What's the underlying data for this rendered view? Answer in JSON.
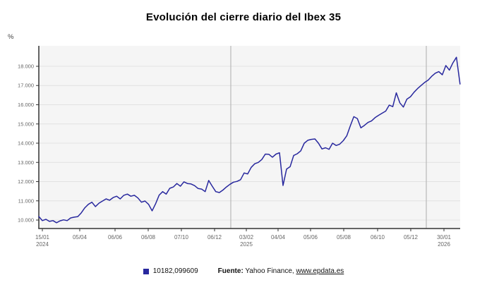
{
  "page": {
    "title": "Evolución del cierre diario del Ibex 35",
    "unit_label": "%"
  },
  "legend": {
    "series_label": "10182,099609"
  },
  "source": {
    "prefix": "Fuente:",
    "text": " Yahoo Finance, ",
    "link": "www.epdata.es"
  },
  "colors": {
    "line": "#28289E",
    "plot_bg": "#F5F5F5",
    "grid": "#E2E2E2",
    "year_line": "#ADADAD",
    "axis": "#333333",
    "tick_text": "#666666"
  },
  "chart_data": {
    "type": "line",
    "title": "Evolución del cierre diario del Ibex 35",
    "ylabel": "%",
    "ylim": [
      9560,
      19064
    ],
    "grid": true,
    "legend_position": "bottom",
    "y_ticks": [
      {
        "value": 10000,
        "label": "10.000"
      },
      {
        "value": 11000,
        "label": "11.000"
      },
      {
        "value": 12000,
        "label": "12.000"
      },
      {
        "value": 13000,
        "label": "13.000"
      },
      {
        "value": 14000,
        "label": "14.000"
      },
      {
        "value": 15000,
        "label": "15.000"
      },
      {
        "value": 16000,
        "label": "16.000"
      },
      {
        "value": 17000,
        "label": "17.000"
      },
      {
        "value": 18000,
        "label": "18.000"
      }
    ],
    "x_ticks": [
      {
        "label": "15/01",
        "year": "2024",
        "pos": 0.0084
      },
      {
        "label": "05/04",
        "year": "",
        "pos": 0.0971
      },
      {
        "label": "06/06",
        "year": "",
        "pos": 0.1809
      },
      {
        "label": "06/08",
        "year": "",
        "pos": 0.2596
      },
      {
        "label": "07/10",
        "year": "",
        "pos": 0.3383
      },
      {
        "label": "06/12",
        "year": "",
        "pos": 0.4171
      },
      {
        "label": "03/02",
        "year": "2025",
        "pos": 0.4925
      },
      {
        "label": "04/04",
        "year": "",
        "pos": 0.5678
      },
      {
        "label": "05/06",
        "year": "",
        "pos": 0.6449
      },
      {
        "label": "05/08",
        "year": "",
        "pos": 0.7236
      },
      {
        "label": "06/10",
        "year": "",
        "pos": 0.804
      },
      {
        "label": "05/12",
        "year": "",
        "pos": 0.8827
      },
      {
        "label": "30/01",
        "year": "2026",
        "pos": 0.9615
      }
    ],
    "year_boundaries_pos": [
      0.4556,
      0.9196
    ],
    "series": [
      {
        "name": "10182,099609",
        "color": "#28289E",
        "x_start": 0.0,
        "x_step": 0.0084,
        "values": [
          10182,
          9970,
          10040,
          9930,
          9970,
          9860,
          9960,
          10010,
          9970,
          10110,
          10150,
          10180,
          10380,
          10640,
          10820,
          10930,
          10700,
          10880,
          10990,
          11100,
          11030,
          11170,
          11240,
          11100,
          11290,
          11350,
          11240,
          11290,
          11150,
          10930,
          10990,
          10820,
          10480,
          10850,
          11300,
          11480,
          11350,
          11650,
          11720,
          11900,
          11760,
          11990,
          11900,
          11880,
          11790,
          11640,
          11610,
          11480,
          12060,
          11760,
          11480,
          11430,
          11560,
          11720,
          11860,
          11970,
          12010,
          12100,
          12450,
          12400,
          12740,
          12930,
          13000,
          13150,
          13430,
          13420,
          13270,
          13430,
          13500,
          11800,
          12650,
          12780,
          13360,
          13450,
          13600,
          14000,
          14150,
          14200,
          14220,
          14000,
          13700,
          13760,
          13680,
          14000,
          13880,
          13950,
          14130,
          14380,
          14900,
          15380,
          15280,
          14800,
          14930,
          15080,
          15160,
          15330,
          15450,
          15560,
          15670,
          15980,
          15900,
          16620,
          16100,
          15880,
          16290,
          16420,
          16650,
          16840,
          17000,
          17160,
          17280,
          17480,
          17640,
          17720,
          17560,
          18040,
          17800,
          18180,
          18470,
          17080
        ]
      }
    ]
  }
}
